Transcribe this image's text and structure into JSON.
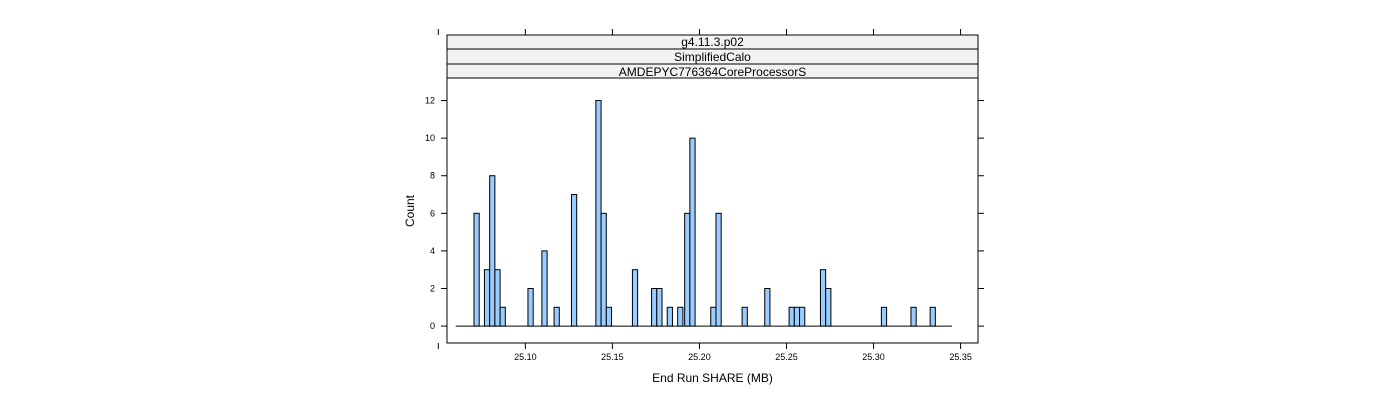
{
  "chart_data": {
    "type": "bar",
    "strips": [
      "g4.11.3.p02",
      "SimplifiedCalo",
      "AMDEPYC776364CoreProcessorS"
    ],
    "xlabel": "End Run SHARE (MB)",
    "ylabel": "Count",
    "xlim": [
      25.055,
      25.36
    ],
    "ylim": [
      -0.9,
      13.2
    ],
    "x_ticks": [
      "25.10",
      "25.15",
      "25.20",
      "25.25",
      "25.30",
      "25.35"
    ],
    "y_ticks": [
      "0",
      "2",
      "4",
      "6",
      "8",
      "10",
      "12"
    ],
    "bin_width": 0.003,
    "baseline_range": [
      25.06,
      25.345
    ],
    "bar_fill": "#99ccff",
    "bar_stroke": "#000000",
    "strip_fill": "#f2f2f2",
    "bins": [
      {
        "x": 25.072,
        "count": 6
      },
      {
        "x": 25.078,
        "count": 3
      },
      {
        "x": 25.081,
        "count": 8
      },
      {
        "x": 25.084,
        "count": 3
      },
      {
        "x": 25.087,
        "count": 1
      },
      {
        "x": 25.103,
        "count": 2
      },
      {
        "x": 25.111,
        "count": 4
      },
      {
        "x": 25.118,
        "count": 1
      },
      {
        "x": 25.128,
        "count": 7
      },
      {
        "x": 25.142,
        "count": 12
      },
      {
        "x": 25.145,
        "count": 6
      },
      {
        "x": 25.148,
        "count": 1
      },
      {
        "x": 25.163,
        "count": 3
      },
      {
        "x": 25.174,
        "count": 2
      },
      {
        "x": 25.177,
        "count": 2
      },
      {
        "x": 25.183,
        "count": 1
      },
      {
        "x": 25.189,
        "count": 1
      },
      {
        "x": 25.193,
        "count": 6
      },
      {
        "x": 25.196,
        "count": 10
      },
      {
        "x": 25.208,
        "count": 1
      },
      {
        "x": 25.211,
        "count": 6
      },
      {
        "x": 25.226,
        "count": 1
      },
      {
        "x": 25.239,
        "count": 2
      },
      {
        "x": 25.253,
        "count": 1
      },
      {
        "x": 25.256,
        "count": 1
      },
      {
        "x": 25.259,
        "count": 1
      },
      {
        "x": 25.271,
        "count": 3
      },
      {
        "x": 25.274,
        "count": 2
      },
      {
        "x": 25.306,
        "count": 1
      },
      {
        "x": 25.323,
        "count": 1
      },
      {
        "x": 25.334,
        "count": 1
      }
    ]
  }
}
